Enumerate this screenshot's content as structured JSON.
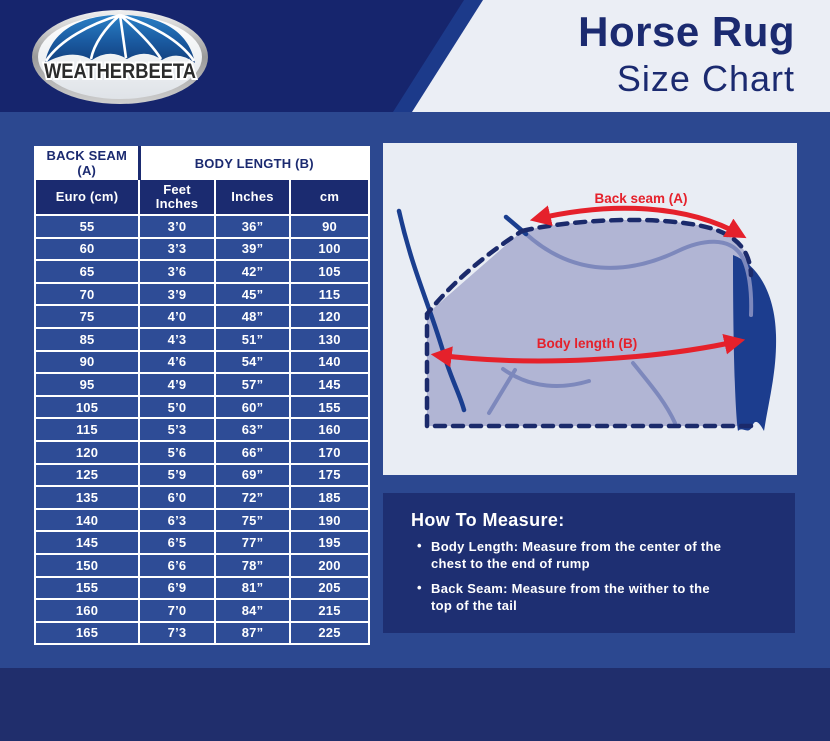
{
  "header": {
    "brand": "WEATHERBEETA",
    "title_line1": "Horse Rug",
    "title_line2": "Size Chart"
  },
  "table": {
    "group_headers": [
      {
        "label": "BACK SEAM (A)"
      },
      {
        "label": "BODY LENGTH (B)"
      }
    ],
    "columns": [
      "Euro (cm)",
      "Feet\nInches",
      "Inches",
      "cm"
    ],
    "rows": [
      [
        "55",
        "3’0",
        "36”",
        "90"
      ],
      [
        "60",
        "3’3",
        "39”",
        "100"
      ],
      [
        "65",
        "3’6",
        "42”",
        "105"
      ],
      [
        "70",
        "3’9",
        "45”",
        "115"
      ],
      [
        "75",
        "4’0",
        "48”",
        "120"
      ],
      [
        "85",
        "4’3",
        "51”",
        "130"
      ],
      [
        "90",
        "4’6",
        "54”",
        "140"
      ],
      [
        "95",
        "4’9",
        "57”",
        "145"
      ],
      [
        "105",
        "5’0",
        "60”",
        "155"
      ],
      [
        "115",
        "5’3",
        "63”",
        "160"
      ],
      [
        "120",
        "5’6",
        "66”",
        "170"
      ],
      [
        "125",
        "5’9",
        "69”",
        "175"
      ],
      [
        "135",
        "6’0",
        "72”",
        "185"
      ],
      [
        "140",
        "6’3",
        "75”",
        "190"
      ],
      [
        "145",
        "6’5",
        "77”",
        "195"
      ],
      [
        "150",
        "6’6",
        "78”",
        "200"
      ],
      [
        "155",
        "6’9",
        "81”",
        "205"
      ],
      [
        "160",
        "7’0",
        "84”",
        "215"
      ],
      [
        "165",
        "7’3",
        "87”",
        "225"
      ]
    ]
  },
  "diagram": {
    "back_seam_label": "Back seam (A)",
    "body_length_label": "Body length (B)"
  },
  "how_to_measure": {
    "heading": "How To Measure:",
    "bullet_char": "•",
    "bullets": [
      "Body Length: Measure from the center of the\nchest to the end of rump",
      "Back Seam: Measure from the wither to the\ntop of the tail"
    ]
  },
  "colors": {
    "header_navy": "#16256d",
    "page_blue": "#2c4890",
    "panel_navy": "#1e2f72",
    "light_panel": "#e9edf4",
    "table_header_navy": "#1b2b70",
    "table_row_blue": "#2e4c96",
    "accent_red": "#e5212b",
    "horse_fill": "#b1b5d4",
    "horse_line": "#7d88bc",
    "horse_dark": "#1a3e8f"
  }
}
